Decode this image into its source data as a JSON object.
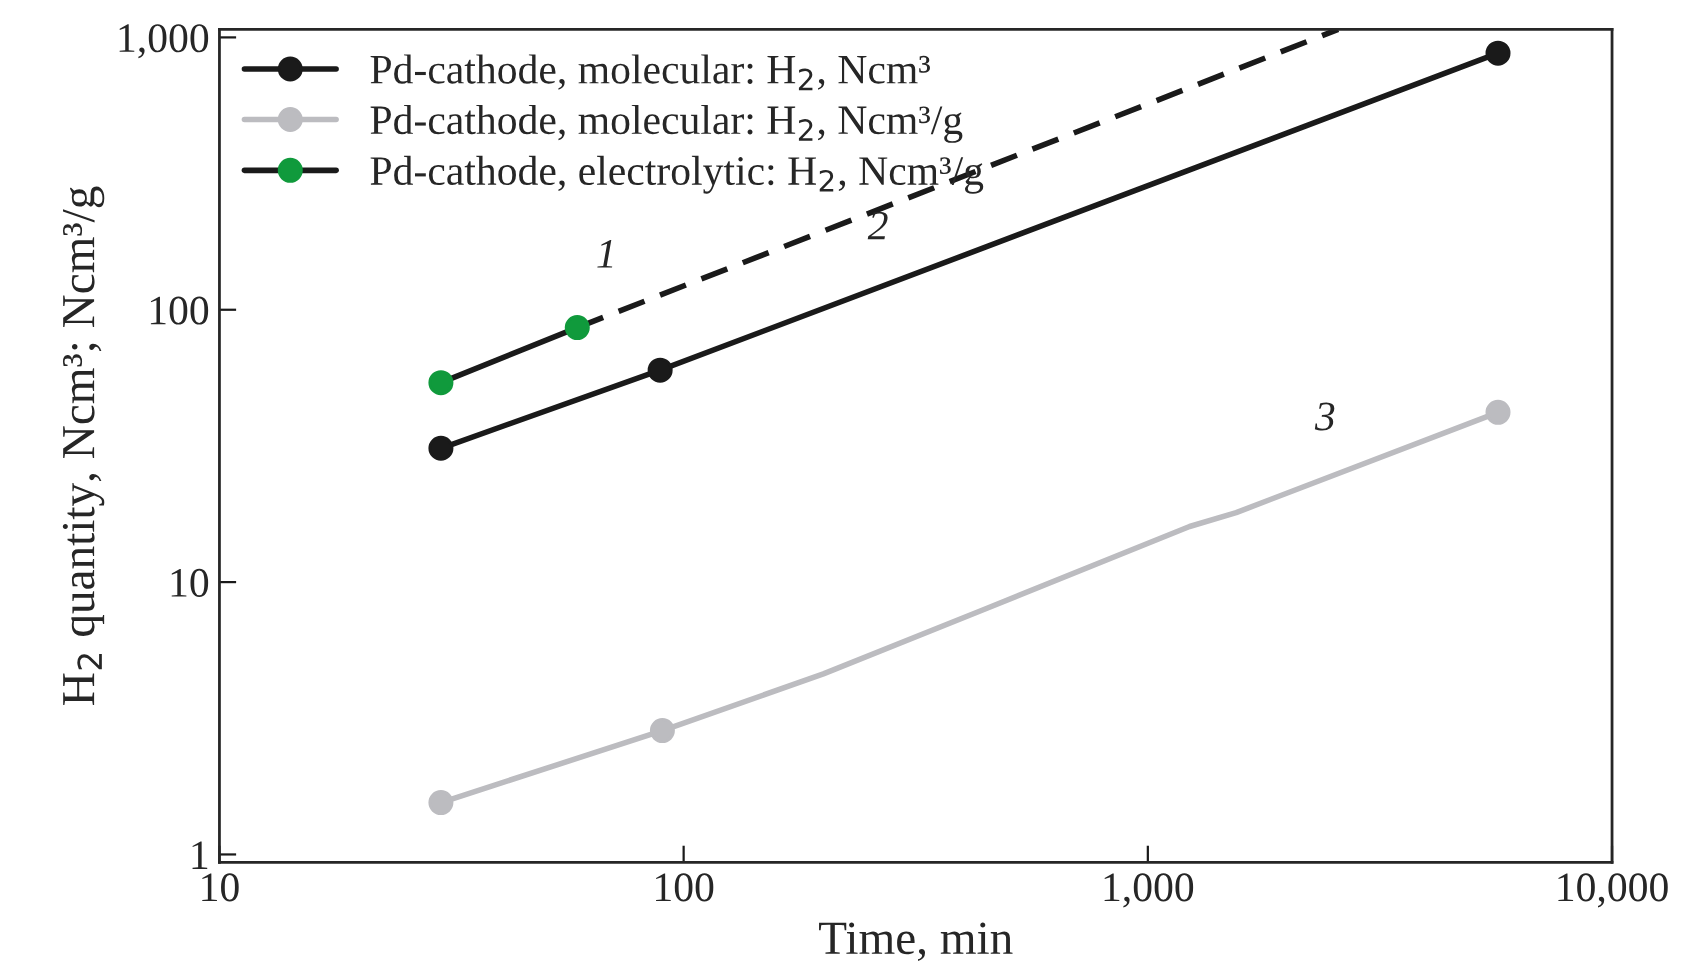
{
  "chart_data": {
    "type": "line",
    "xlabel": "Time, min",
    "ylabel": "H$_{2}$ quantity, Ncm³; Ncm³/g",
    "log": "xy",
    "xlim": [
      10,
      10000
    ],
    "ylim": [
      0.935,
      1070
    ],
    "xticks": [
      10,
      100,
      {
        "value": 1000,
        "label": "1,000"
      },
      {
        "value": 10000,
        "label": "10,000"
      }
    ],
    "yticks": [
      1,
      10,
      100,
      {
        "value": 1000,
        "label": "1,000"
      }
    ],
    "grid": false,
    "legend": "top left",
    "series": [
      {
        "name": "Pd-cathode, molecular: H$_{2}$, Ncm³",
        "color": "#1a1a1a",
        "marker": "circle",
        "x": [
          30,
          89,
          5680
        ],
        "values": [
          31,
          60,
          875
        ]
      },
      {
        "name": "Pd-cathode, molecular: H$_{2}$, Ncm³/g",
        "color": "#bcbcc0",
        "marker": "none",
        "x": [
          30,
          90,
          200,
          449,
          1230,
          1550,
          5680
        ],
        "values": [
          1.55,
          2.85,
          4.6,
          8.0,
          16,
          18,
          42
        ]
      },
      {
        "type": "scatter",
        "color": "#bcbcc0",
        "marker": "circle",
        "x": [
          30,
          90,
          5680
        ],
        "values": [
          1.55,
          2.85,
          42
        ]
      },
      {
        "name": "Pd-cathode, electrolytic: H$_{2}$, Ncm³/g",
        "type": "scatter",
        "color": "#109a3c",
        "marker": "circle",
        "x": [
          30,
          59
        ],
        "values": [
          54,
          86
        ]
      },
      {
        "color": "#1a1a1a",
        "marker": "none",
        "x": [
          30,
          59
        ],
        "values": [
          54,
          86
        ]
      },
      {
        "color": "#1a1a1a",
        "line_style": "dashed",
        "marker": "none",
        "x": [
          59,
          2570
        ],
        "values": [
          86,
          1070
        ]
      }
    ],
    "annotations": [
      {
        "text": "1",
        "x": 74,
        "y": 100
      },
      {
        "text": "2",
        "x": 285,
        "y": 127
      },
      {
        "text": "3",
        "x": 2620,
        "y": 25.3
      }
    ]
  }
}
